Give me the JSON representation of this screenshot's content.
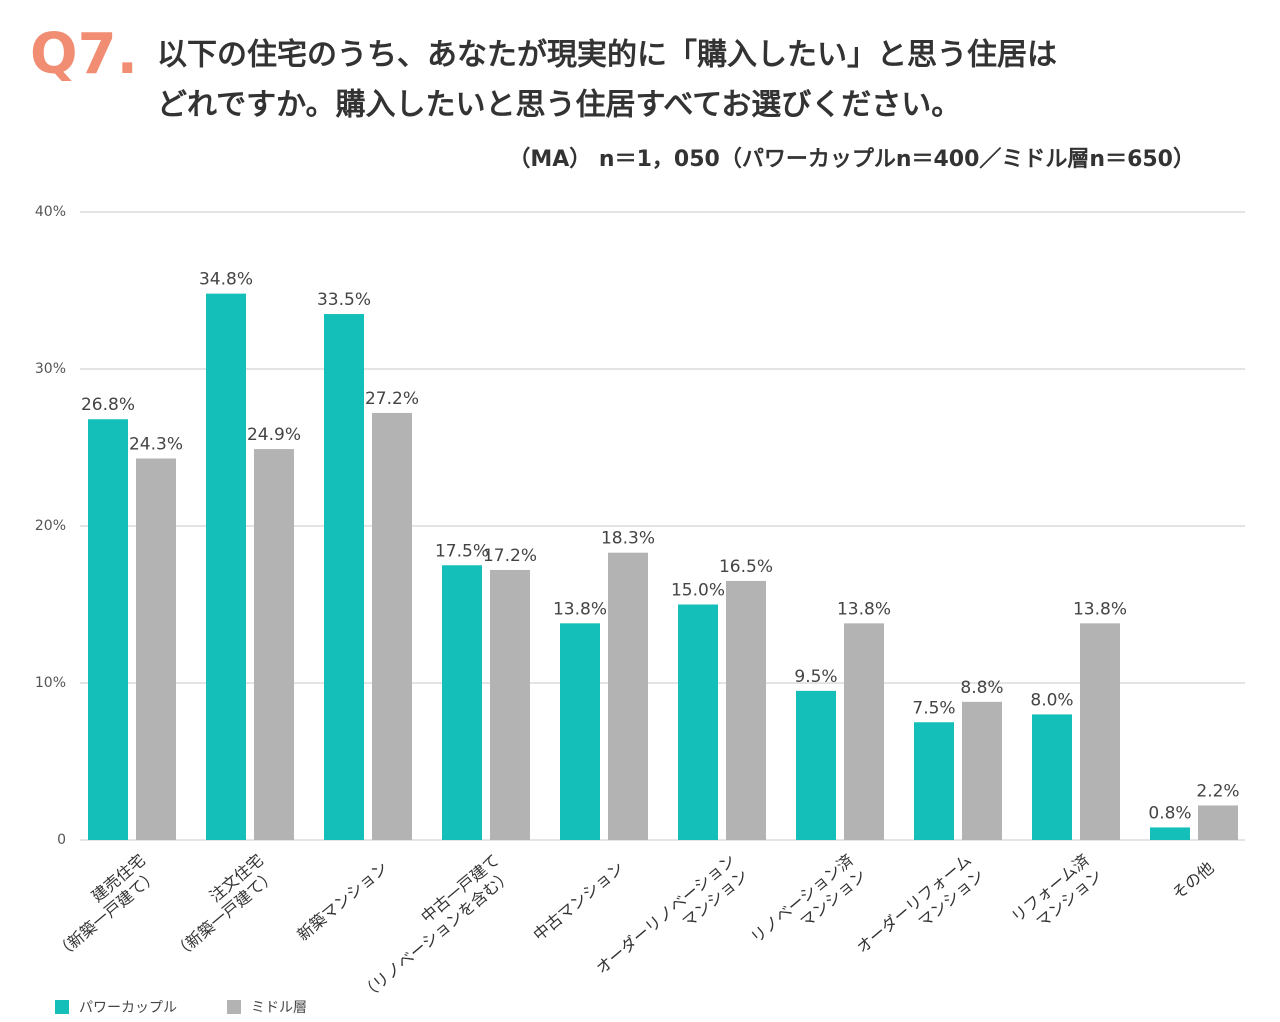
{
  "chart_data": {
    "type": "bar",
    "question_number": "Q7.",
    "title": [
      "以下の住宅のうち、あなたが現実的に「購入したい」と思う住居は",
      "どれですか。購入したいと思う住居すべてお選びください。"
    ],
    "subtitle": "（MA） n＝1，050（パワーカップルn＝400／ミドル層n＝650）",
    "categories": [
      [
        "建売住宅",
        "（新築一戸建て）"
      ],
      [
        "注文住宅",
        "（新築一戸建て）"
      ],
      [
        "新築マンション"
      ],
      [
        "中古一戸建て",
        "（リノベーションを含む）"
      ],
      [
        "中古マンション"
      ],
      [
        "オーダーリノベーション",
        "マンション"
      ],
      [
        "リノベーション済",
        "マンション"
      ],
      [
        "オーダーリフォーム",
        "マンション"
      ],
      [
        "リフォーム済",
        "マンション"
      ],
      [
        "その他"
      ]
    ],
    "series": [
      {
        "name": "パワーカップル",
        "color": "#13bfb8",
        "values": [
          26.8,
          34.8,
          33.5,
          17.5,
          13.8,
          15.0,
          9.5,
          7.5,
          8.0,
          0.8
        ],
        "value_labels": [
          "26.8%",
          "34.8%",
          "33.5%",
          "17.5%",
          "13.8%",
          "15.0%",
          "9.5%",
          "7.5%",
          "8.0%",
          "0.8%"
        ]
      },
      {
        "name": "ミドル層",
        "color": "#b3b3b3",
        "values": [
          24.3,
          24.9,
          27.2,
          17.2,
          18.3,
          16.5,
          13.8,
          8.8,
          13.8,
          2.2
        ],
        "value_labels": [
          "24.3%",
          "24.9%",
          "27.2%",
          "17.2%",
          "18.3%",
          "16.5%",
          "13.8%",
          "8.8%",
          "13.8%",
          "2.2%"
        ]
      }
    ],
    "ylim": [
      0,
      40
    ],
    "yticks": [
      0,
      {
        "value": 10,
        "label": "10%"
      },
      {
        "value": 20,
        "label": "20%"
      },
      {
        "value": 30,
        "label": "30%"
      },
      {
        "value": 40,
        "label": "40%"
      }
    ],
    "grid": true,
    "legend": "bottom-left"
  }
}
